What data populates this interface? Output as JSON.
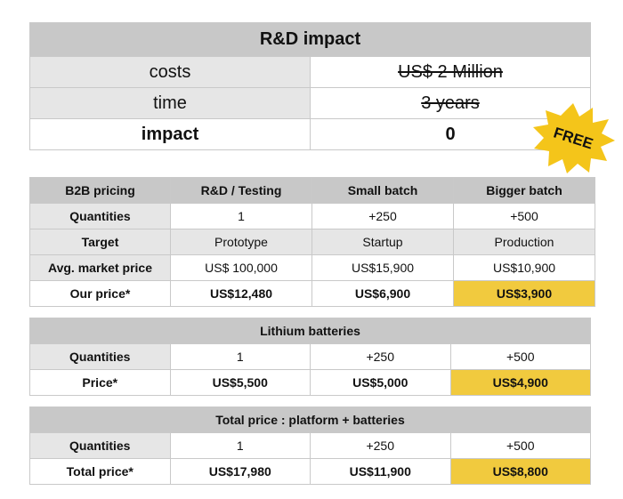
{
  "rd_impact": {
    "title": "R&D impact",
    "rows": [
      {
        "label": "costs",
        "value": "US$ 2 Million"
      },
      {
        "label": "time",
        "value": "3 years"
      },
      {
        "label": "impact",
        "value": "0"
      }
    ],
    "badge": "FREE"
  },
  "b2b": {
    "header": [
      "B2B pricing",
      "R&D / Testing",
      "Small batch",
      "Bigger batch"
    ],
    "rows": [
      {
        "label": "Quantities",
        "cells": [
          "1",
          "+250",
          "+500"
        ]
      },
      {
        "label": "Target",
        "cells": [
          "Prototype",
          "Startup",
          "Production"
        ]
      },
      {
        "label": "Avg. market price",
        "cells": [
          "US$ 100,000",
          "US$15,900",
          "US$10,900"
        ]
      },
      {
        "label": "Our price*",
        "cells": [
          "US$12,480",
          "US$6,900",
          "US$3,900"
        ]
      }
    ]
  },
  "lithium": {
    "title": "Lithium batteries",
    "rows": [
      {
        "label": "Quantities",
        "cells": [
          "1",
          "+250",
          "+500"
        ]
      },
      {
        "label": "Price*",
        "cells": [
          "US$5,500",
          "US$5,000",
          "US$4,900"
        ]
      }
    ]
  },
  "total": {
    "title": "Total price : platform + batteries",
    "rows": [
      {
        "label": "Quantities",
        "cells": [
          "1",
          "+250",
          "+500"
        ]
      },
      {
        "label": "Total price*",
        "cells": [
          "US$17,980",
          "US$11,900",
          "US$8,800"
        ]
      }
    ]
  },
  "colors": {
    "highlight": "#f1ca3e",
    "badge": "#f4c51a",
    "header_gray": "#c8c8c8"
  }
}
